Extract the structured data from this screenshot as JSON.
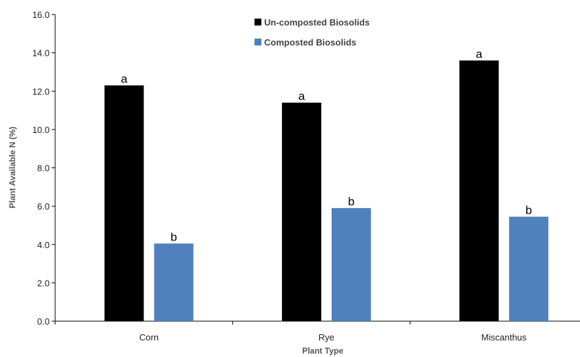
{
  "chart_data": {
    "type": "bar",
    "categories": [
      "Corn",
      "Rye",
      "Miscanthus"
    ],
    "series": [
      {
        "name": "Un-composted Biosolids",
        "values": [
          12.3,
          11.4,
          13.6
        ],
        "labels": [
          "a",
          "a",
          "a"
        ],
        "color": "#000000"
      },
      {
        "name": "Composted Biosolids",
        "values": [
          4.05,
          5.9,
          5.45
        ],
        "labels": [
          "b",
          "b",
          "b"
        ],
        "color": "#4f81bd"
      }
    ],
    "xlabel": "Plant Type",
    "ylabel": "Plant Available N (%)",
    "ylim": [
      0,
      16
    ],
    "yticks": [
      "0.0",
      "2.0",
      "4.0",
      "6.0",
      "8.0",
      "10.0",
      "12.0",
      "14.0",
      "16.0"
    ],
    "grid": false,
    "legend_position": "top-center"
  }
}
